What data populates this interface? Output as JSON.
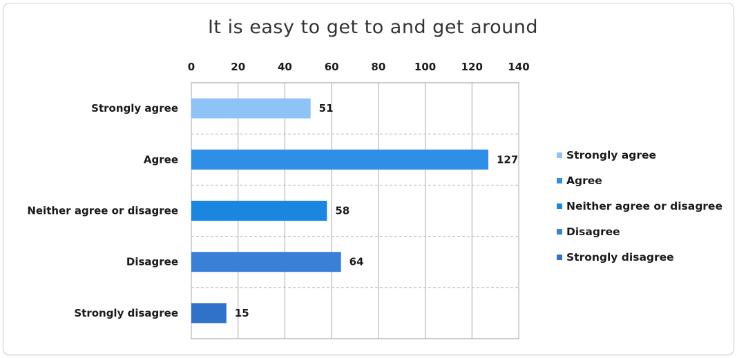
{
  "chart_data": {
    "type": "bar",
    "orientation": "horizontal",
    "title": "It is easy to get to and get around",
    "xlabel": "",
    "ylabel": "",
    "categories": [
      "Strongly agree",
      "Agree",
      "Neither agree or disagree",
      "Disagree",
      "Strongly disagree"
    ],
    "values": [
      51,
      127,
      58,
      64,
      15
    ],
    "colors": [
      "#8ec4f5",
      "#2f8ee6",
      "#1a86e0",
      "#3a80d6",
      "#2e72c9"
    ],
    "xlim": [
      0,
      140
    ],
    "xticks": [
      0,
      20,
      40,
      60,
      80,
      100,
      120,
      140
    ],
    "tick_labels": [
      "0",
      "20",
      "40",
      "60",
      "80",
      "100",
      "120",
      "140"
    ],
    "axis_position": "top",
    "grid": true,
    "data_labels": true,
    "legend_position": "right",
    "legend": [
      "Strongly agree",
      "Agree",
      "Neither agree or disagree",
      "Disagree",
      "Strongly disagree"
    ]
  }
}
